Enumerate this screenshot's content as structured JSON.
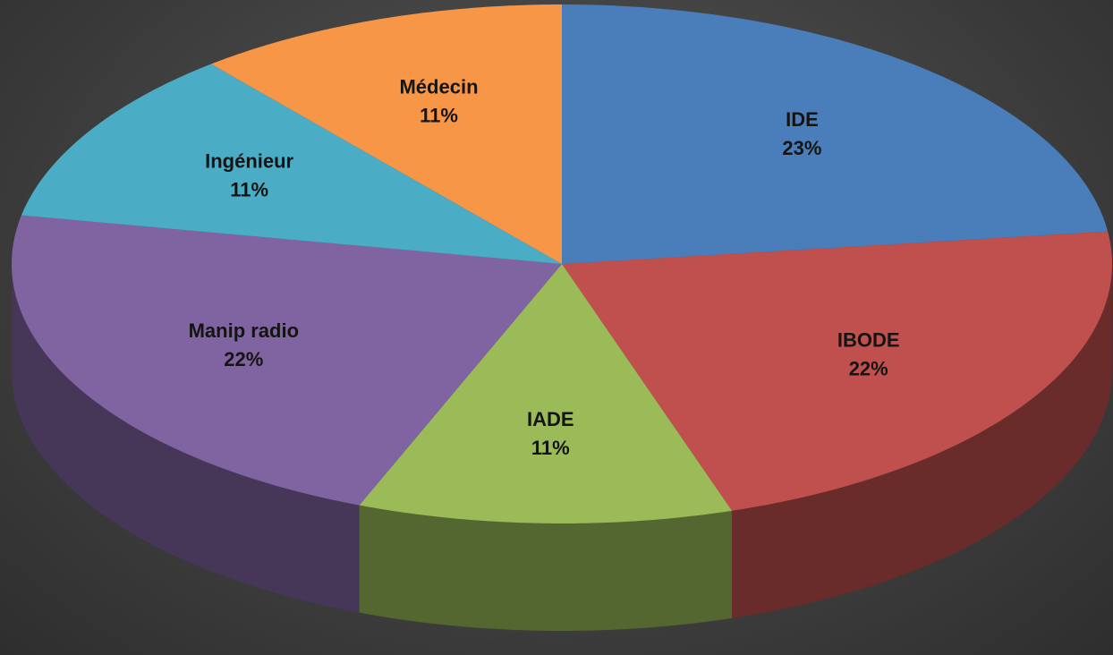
{
  "chart_data": {
    "type": "pie",
    "categories": [
      "IDE",
      "IBODE",
      "IADE",
      "Manip radio",
      "Ingénieur",
      "Médecin"
    ],
    "values": [
      23,
      22,
      11,
      22,
      11,
      11
    ],
    "value_labels": [
      "23%",
      "22%",
      "11%",
      "22%",
      "11%",
      "11%"
    ],
    "colors": [
      "#4a7ebb",
      "#c0504d",
      "#9bbb59",
      "#8064a2",
      "#4bacc6",
      "#f79646"
    ],
    "three_d": true
  }
}
